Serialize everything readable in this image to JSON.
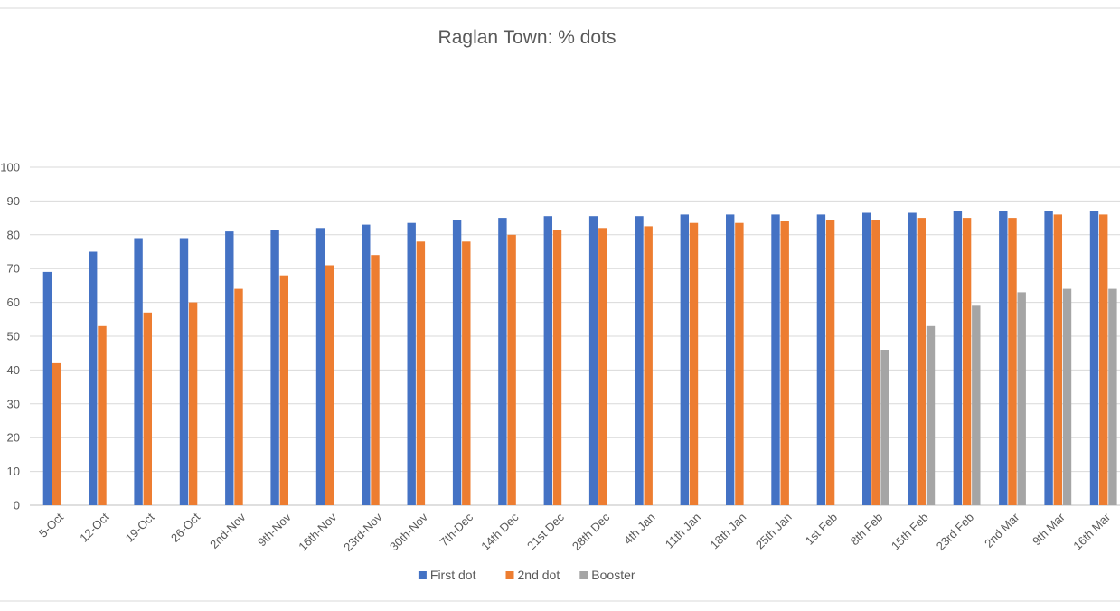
{
  "chart_data": {
    "type": "bar",
    "title": "Raglan Town: % dots",
    "xlabel": "",
    "ylabel": "",
    "ylim": [
      0,
      100
    ],
    "yticks": [
      0,
      10,
      20,
      30,
      40,
      50,
      60,
      70,
      80,
      90,
      100
    ],
    "grid": true,
    "legend_position": "bottom",
    "categories": [
      "5-Oct",
      "12-Oct",
      "19-Oct",
      "26-Oct",
      "2nd-Nov",
      "9th-Nov",
      "16th-Nov",
      "23rd-Nov",
      "30th-Nov",
      "7th-Dec",
      "14th Dec",
      "21st Dec",
      "28th Dec",
      "4th Jan",
      "11th Jan",
      "18th Jan",
      "25th Jan",
      "1st Feb",
      "8th Feb",
      "15th Feb",
      "23rd Feb",
      "2nd Mar",
      "9th Mar",
      "16th Mar"
    ],
    "series": [
      {
        "name": "First dot",
        "color": "#4472C4",
        "values": [
          69,
          75,
          79,
          79,
          81,
          81.5,
          82,
          83,
          83.5,
          84.5,
          85,
          85.5,
          85.5,
          85.5,
          86,
          86,
          86,
          86,
          86.5,
          86.5,
          87,
          87,
          87,
          87
        ]
      },
      {
        "name": "2nd dot",
        "color": "#ED7D31",
        "values": [
          42,
          53,
          57,
          60,
          64,
          68,
          71,
          74,
          78,
          78,
          80,
          81.5,
          82,
          82.5,
          83.5,
          83.5,
          84,
          84.5,
          84.5,
          85,
          85,
          85,
          86,
          86
        ]
      },
      {
        "name": "Booster",
        "color": "#A5A5A5",
        "values": [
          null,
          null,
          null,
          null,
          null,
          null,
          null,
          null,
          null,
          null,
          null,
          null,
          null,
          null,
          null,
          null,
          null,
          null,
          46,
          53,
          59,
          63,
          64,
          64
        ]
      }
    ]
  }
}
